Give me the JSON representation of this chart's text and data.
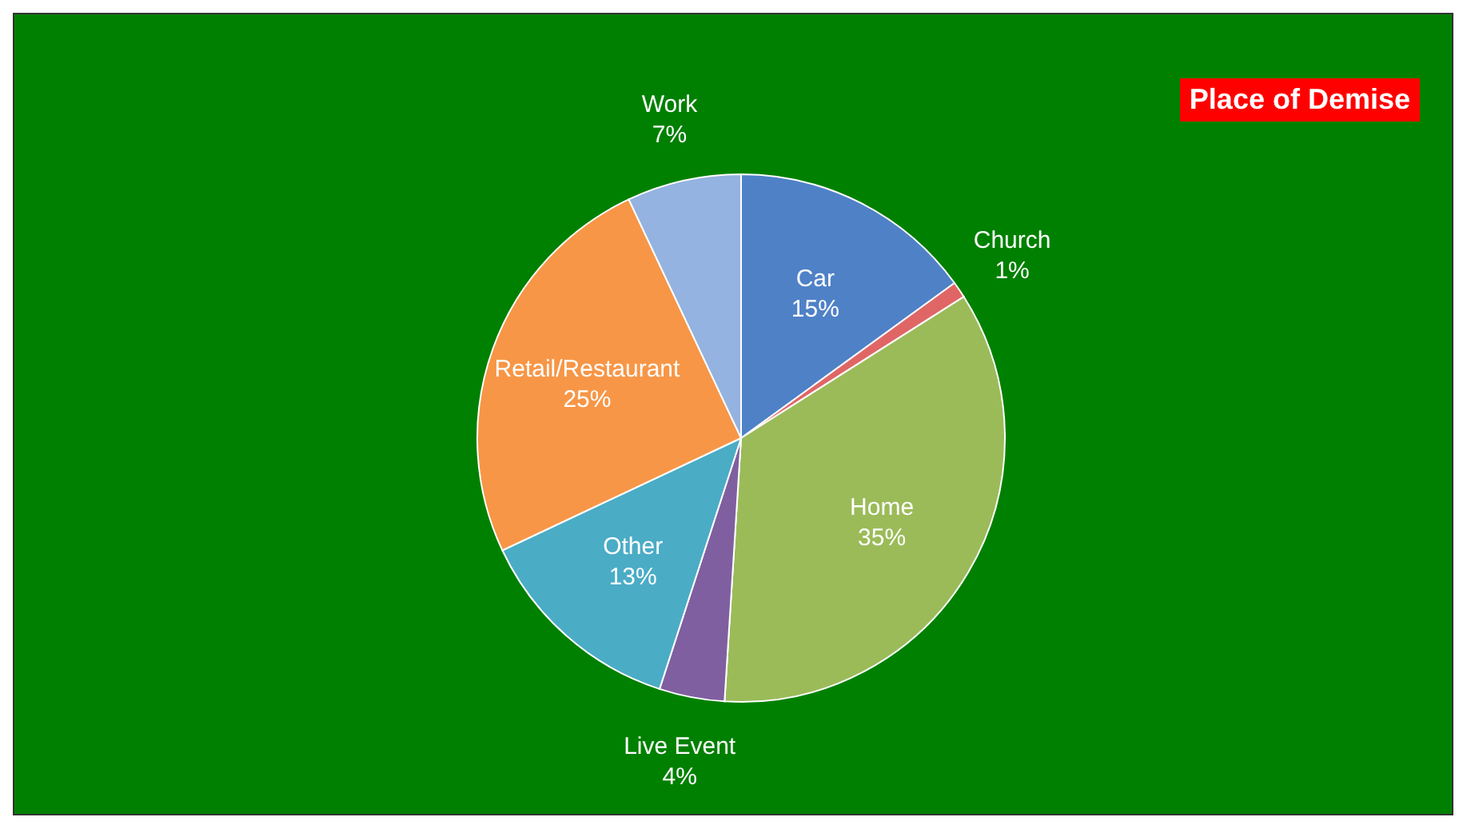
{
  "chart_data": {
    "type": "pie",
    "title": "Place of Demise",
    "categories": [
      "Car",
      "Church",
      "Home",
      "Live Event",
      "Other",
      "Retail/Restaurant",
      "Work"
    ],
    "values": [
      15,
      1,
      35,
      4,
      13,
      25,
      7
    ],
    "value_labels": [
      "15%",
      "1%",
      "35%",
      "4%",
      "13%",
      "25%",
      "7%"
    ],
    "colors": [
      "#4f81c7",
      "#e06666",
      "#9bbb59",
      "#7f5fa0",
      "#4bacc6",
      "#f79646",
      "#95b3e0"
    ]
  }
}
